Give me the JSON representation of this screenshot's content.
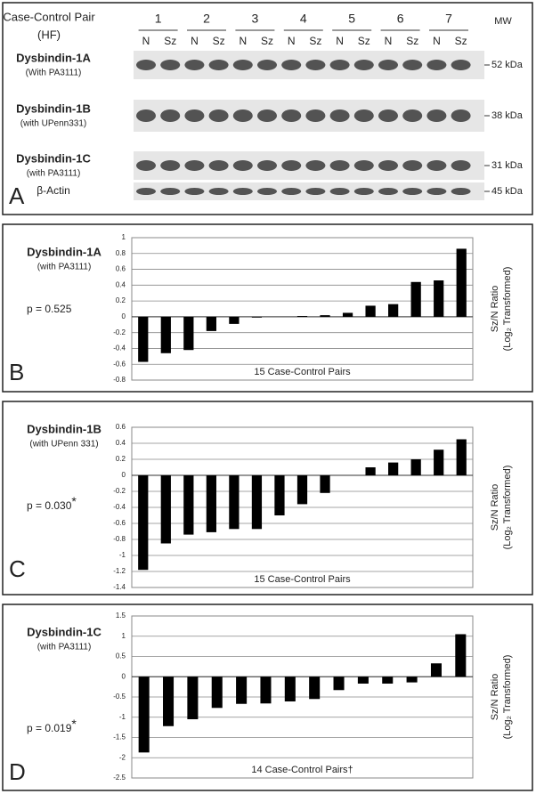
{
  "blot": {
    "header": [
      "Case-Control Pair",
      "(HF)"
    ],
    "pairs": [
      "1",
      "2",
      "3",
      "4",
      "5",
      "6",
      "7"
    ],
    "lanes": [
      "N",
      "Sz"
    ],
    "mw_header": "MW",
    "panel_label": "A",
    "rows": [
      {
        "name": "Dysbindin-1A",
        "antibody": "(With PA3111)",
        "mw": "52 kDa"
      },
      {
        "name": "Dysbindin-1B",
        "antibody": "(with UPenn331)",
        "mw": "38 kDa"
      },
      {
        "name": "Dysbindin-1C",
        "antibody": "(with PA3111)",
        "mw": "31 kDa"
      },
      {
        "name": "β-Actin",
        "mw": "45 kDa"
      }
    ]
  },
  "chart_data": [
    {
      "type": "bar",
      "panel_label": "B",
      "title": "Dysbindin-1A",
      "subtitle": "(with PA3111)",
      "p_value": "p = 0.525",
      "values": [
        -0.57,
        -0.46,
        -0.42,
        -0.18,
        -0.09,
        -0.01,
        0.0,
        0.01,
        0.02,
        0.05,
        0.14,
        0.16,
        0.44,
        0.46,
        0.86
      ],
      "color": "#000000",
      "xlabel": "15 Case-Control Pairs",
      "ylabel": [
        "Sz/N Ratio",
        "(Log₂ Transformed)"
      ],
      "ylim": [
        -0.8,
        1
      ],
      "yticks": [
        -0.8,
        -0.6,
        -0.4,
        -0.2,
        0,
        0.2,
        0.4,
        0.6,
        0.8,
        1
      ],
      "grid": true
    },
    {
      "type": "bar",
      "panel_label": "C",
      "title": "Dysbindin-1B",
      "subtitle": "(with UPenn 331)",
      "p_value": "p = 0.030",
      "p_mark": "*",
      "values": [
        -1.18,
        -0.85,
        -0.74,
        -0.71,
        -0.67,
        -0.67,
        -0.5,
        -0.36,
        -0.22,
        0.0,
        0.1,
        0.16,
        0.2,
        0.32,
        0.45
      ],
      "color": "#000000",
      "xlabel": "15 Case-Control Pairs",
      "ylabel": [
        "Sz/N Ratio",
        "(Log₂ Transformed)"
      ],
      "ylim": [
        -1.4,
        0.6
      ],
      "yticks": [
        -1.4,
        -1.2,
        -1,
        -0.8,
        -0.6,
        -0.4,
        -0.2,
        0,
        0.2,
        0.4,
        0.6
      ],
      "grid": true
    },
    {
      "type": "bar",
      "panel_label": "D",
      "title": "Dysbindin-1C",
      "subtitle": "(with PA3111)",
      "p_value": "p = 0.019",
      "p_mark": "*",
      "values": [
        -1.87,
        -1.22,
        -1.05,
        -0.77,
        -0.67,
        -0.66,
        -0.61,
        -0.55,
        -0.33,
        -0.17,
        -0.17,
        -0.14,
        0.33,
        1.05
      ],
      "color": "#000000",
      "xlabel": "14 Case-Control Pairs†",
      "ylabel": [
        "Sz/N Ratio",
        "(Log₂ Transformed)"
      ],
      "ylim": [
        -2.5,
        1.5
      ],
      "yticks": [
        -2.5,
        -2,
        -1.5,
        -1,
        -0.5,
        0,
        0.5,
        1,
        1.5
      ],
      "grid": true
    }
  ]
}
